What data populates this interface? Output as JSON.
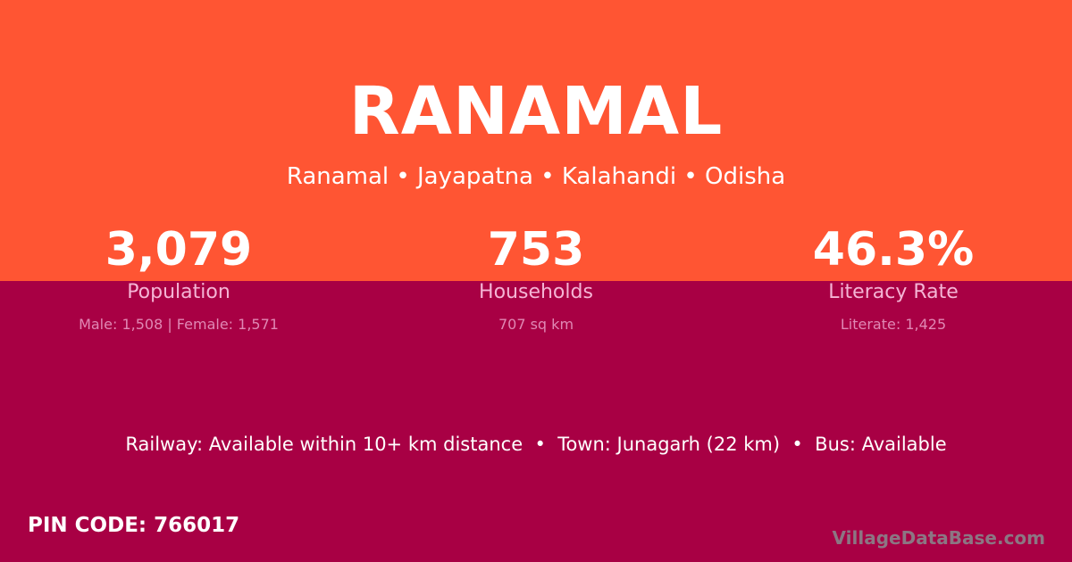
{
  "header": {
    "title": "RANAMAL",
    "subtitle": "Ranamal • Jayapatna • Kalahandi • Odisha"
  },
  "stats": [
    {
      "value": "3,079",
      "label": "Population",
      "detail": "Male: 1,508 | Female: 1,571"
    },
    {
      "value": "753",
      "label": "Households",
      "detail": "707 sq km"
    },
    {
      "value": "46.3%",
      "label": "Literacy Rate",
      "detail": "Literate: 1,425"
    }
  ],
  "transport": "Railway: Available within 10+ km distance  •  Town: Junagarh (22 km)  •  Bus: Available",
  "pin_code": "PIN CODE: 766017",
  "watermark": "VillageDataBase.com",
  "colors": {
    "top": "#ff5533",
    "bottom": "#a80044"
  }
}
